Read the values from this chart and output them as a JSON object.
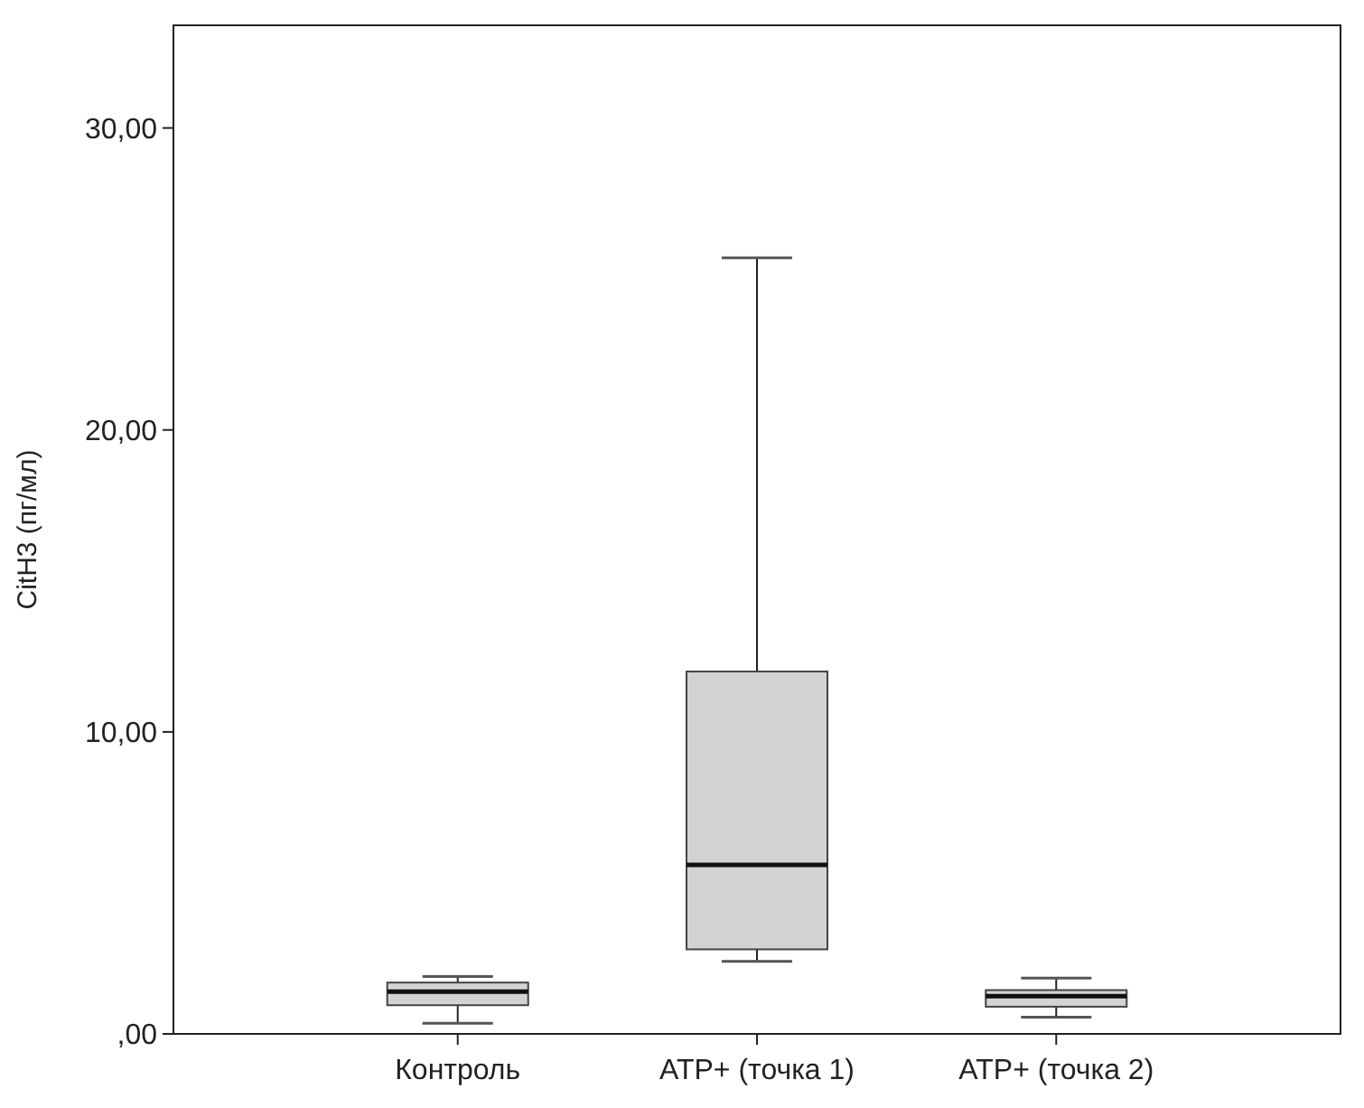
{
  "chart_data": {
    "type": "box",
    "ylabel": "CitH3 (пг/мл)",
    "categories": [
      "Контроль",
      "ATP+ (точка 1)",
      "ATP+ (точка 2)"
    ],
    "color": "#d3d3d5",
    "boxes": [
      {
        "low": 0.35,
        "q1": 0.95,
        "median": 1.4,
        "q3": 1.7,
        "high": 1.9
      },
      {
        "low": 2.4,
        "q1": 2.8,
        "median": 5.6,
        "q3": 12.0,
        "high": 25.7
      },
      {
        "low": 0.55,
        "q1": 0.9,
        "median": 1.25,
        "q3": 1.45,
        "high": 1.85
      }
    ],
    "ylim": [
      0,
      33.4
    ],
    "yticks": [
      {
        "value": 0,
        "label": ",00"
      },
      {
        "value": 10,
        "label": "10,00"
      },
      {
        "value": 20,
        "label": "20,00"
      },
      {
        "value": 30,
        "label": "30,00"
      }
    ],
    "grid": false
  }
}
